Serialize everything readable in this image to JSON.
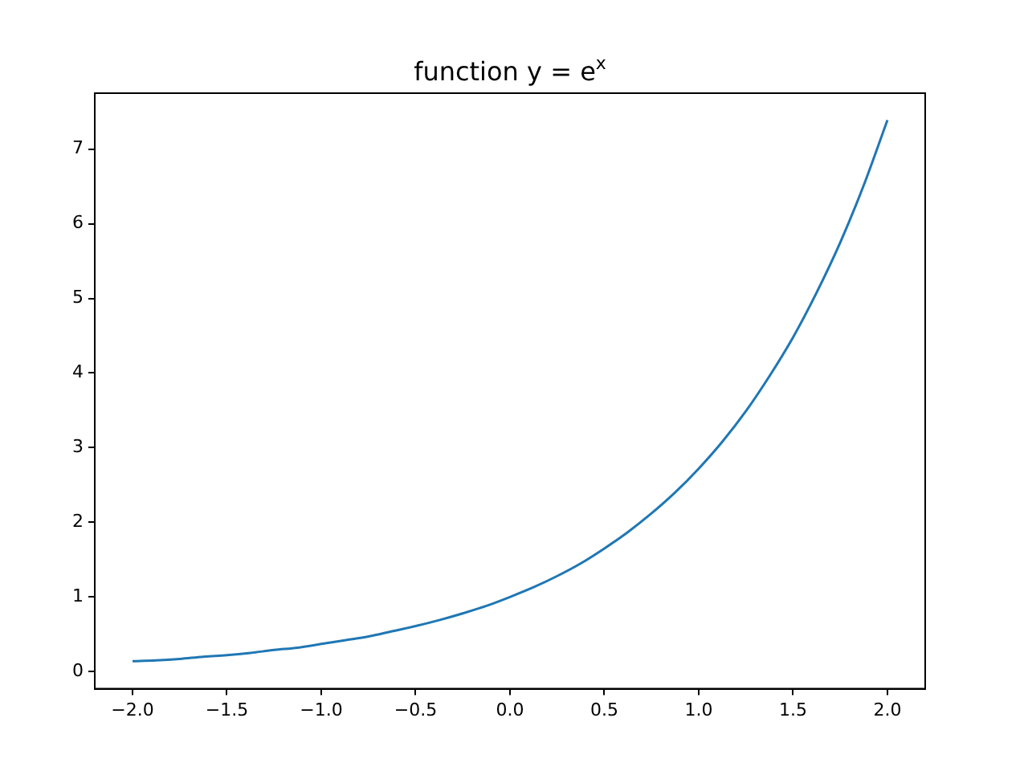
{
  "chart_data": {
    "type": "line",
    "title": "function y = e$^{x}$",
    "x": [
      -2,
      -1.875,
      -1.75,
      -1.625,
      -1.5,
      -1.375,
      -1.25,
      -1.125,
      -1,
      -0.875,
      -0.75,
      -0.625,
      -0.5,
      -0.375,
      -0.25,
      -0.125,
      0,
      0.125,
      0.25,
      0.375,
      0.5,
      0.625,
      0.75,
      0.875,
      1,
      1.125,
      1.25,
      1.375,
      1.5,
      1.625,
      1.75,
      1.875,
      2
    ],
    "series": [
      {
        "color": "#1f77b4",
        "values": [
          0.14,
          0.15,
          0.17,
          0.2,
          0.22,
          0.25,
          0.29,
          0.32,
          0.37,
          0.42,
          0.47,
          0.54,
          0.61,
          0.69,
          0.78,
          0.88,
          1.0,
          1.13,
          1.28,
          1.45,
          1.65,
          1.87,
          2.12,
          2.4,
          2.72,
          3.08,
          3.49,
          3.96,
          4.48,
          5.08,
          5.75,
          6.52,
          7.39
        ]
      }
    ],
    "xlim": [
      -2.2,
      2.2
    ],
    "xticks": [
      {
        "value": -2,
        "label": "−2.0"
      },
      {
        "value": -1.5,
        "label": "−1.5"
      },
      {
        "value": -1,
        "label": "−1.0"
      },
      {
        "value": -0.5,
        "label": "−0.5"
      },
      {
        "value": 0,
        "label": "0.0"
      },
      {
        "value": 0.5,
        "label": "0.5"
      },
      {
        "value": 1,
        "label": "1.0"
      },
      {
        "value": 1.5,
        "label": "1.5"
      },
      {
        "value": 2,
        "label": "2.0"
      }
    ],
    "ylim": [
      -0.23,
      7.75
    ],
    "yticks": [
      0,
      1,
      2,
      3,
      4,
      5,
      6,
      7
    ],
    "grid": false,
    "legend": false,
    "marker": "none",
    "line_style": "solid"
  }
}
